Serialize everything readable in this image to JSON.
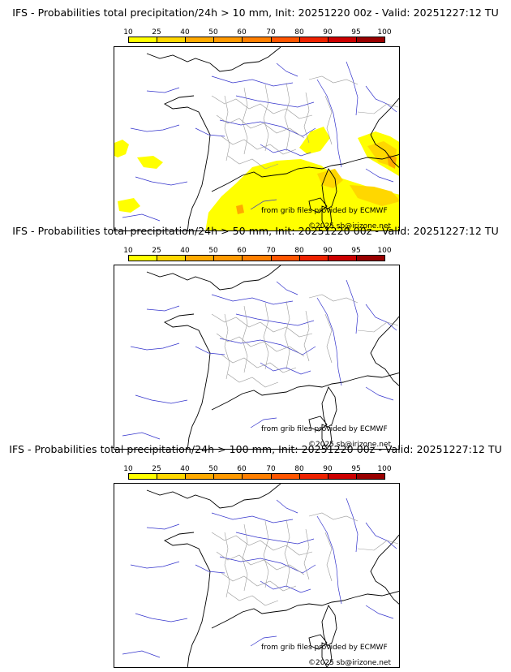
{
  "scale": {
    "labels": [
      "10",
      "25",
      "40",
      "50",
      "60",
      "70",
      "80",
      "90",
      "95",
      "100"
    ],
    "colors": [
      "#ffff00",
      "#ffd700",
      "#ffaa00",
      "#ff9900",
      "#ff7f00",
      "#ff5500",
      "#ee2200",
      "#cc0000",
      "#990000",
      "#660000"
    ]
  },
  "colors": {
    "coast": "#000000",
    "rivers": "#3333cc",
    "borders": "#999999",
    "prob_low": "#ffff00",
    "prob_mid": "#ffd700",
    "prob_high": "#ffaa00"
  },
  "panels": [
    {
      "title": "IFS - Probabilities total precipitation/24h > 10 mm, Init: 20251220 00z - Valid: 20251227:12 TU",
      "credit_source": "from grib files provided by ECMWF",
      "credit_copyright": "©2025 sb@irizone.net"
    },
    {
      "title": "IFS - Probabilities total precipitation/24h > 50 mm, Init: 20251220 00z - Valid: 20251227:12 TU",
      "credit_source": "from grib files provided by ECMWF",
      "credit_copyright": "©2025 sb@irizone.net"
    },
    {
      "title": "IFS - Probabilities total precipitation/24h > 100 mm, Init: 20251220 00z - Valid: 20251227:12 TU",
      "credit_source": "from grib files provided by ECMWF",
      "credit_copyright": "©2025 sb@irizone.net"
    }
  ]
}
